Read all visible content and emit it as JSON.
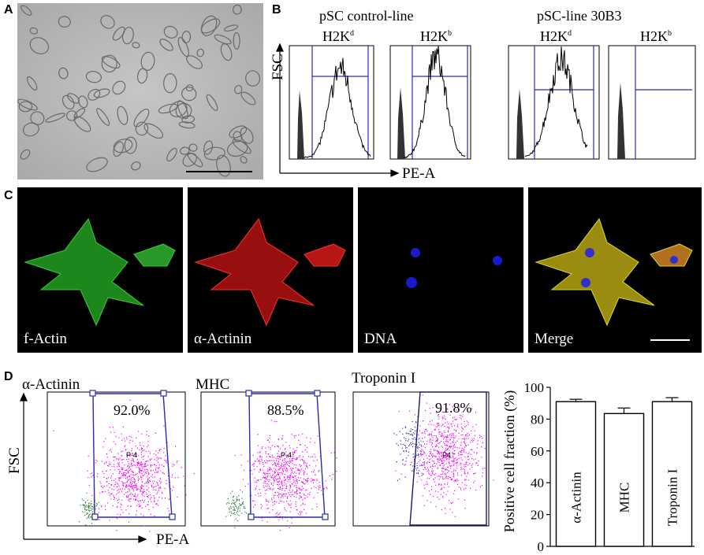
{
  "panel_labels": {
    "a": "A",
    "b": "B",
    "c": "C",
    "d": "D"
  },
  "panel_b": {
    "group1_title": "pSC control-line",
    "group2_title": "pSC-line 30B3",
    "plots": [
      {
        "antigen": "H2K",
        "superscript": "d"
      },
      {
        "antigen": "H2K",
        "superscript": "b"
      },
      {
        "antigen": "H2K",
        "superscript": "d"
      },
      {
        "antigen": "H2K",
        "superscript": "b"
      }
    ],
    "y_axis_label": "FSC",
    "x_axis_label": "PE-A"
  },
  "panel_c": {
    "images": [
      {
        "label": "f-Actin",
        "channel": "green"
      },
      {
        "label": "α-Actinin",
        "channel": "red"
      },
      {
        "label": "DNA",
        "channel": "blue"
      },
      {
        "label": "Merge",
        "channel": "merge"
      }
    ]
  },
  "panel_d": {
    "y_axis_label": "FSC",
    "x_axis_label": "PE-A",
    "dot_plots": [
      {
        "title": "α-Actinin",
        "percent": "92.0%",
        "gate": "P-4"
      },
      {
        "title": "MHC",
        "percent": "88.5%",
        "gate": "P-4"
      },
      {
        "title": "Troponin I",
        "percent": "91.8%",
        "gate": "P4"
      }
    ]
  },
  "chart_data": {
    "type": "bar",
    "categories": [
      "α-Actinin",
      "MHC",
      "Troponin I"
    ],
    "values": [
      91,
      83.5,
      91
    ],
    "errors": [
      1.5,
      3.5,
      2.5
    ],
    "ylabel": "Positive cell fraction (%)",
    "xlabel": "",
    "ylim": [
      0,
      100
    ],
    "yticks": [
      "0",
      "20",
      "40",
      "60",
      "80",
      "100"
    ],
    "bar_fill": "#ffffff",
    "bar_stroke": "#000000"
  },
  "colors": {
    "gate_blue": "#2b2bb0",
    "dot_magenta": "#ff00ff",
    "dot_green": "#2e7d32"
  }
}
